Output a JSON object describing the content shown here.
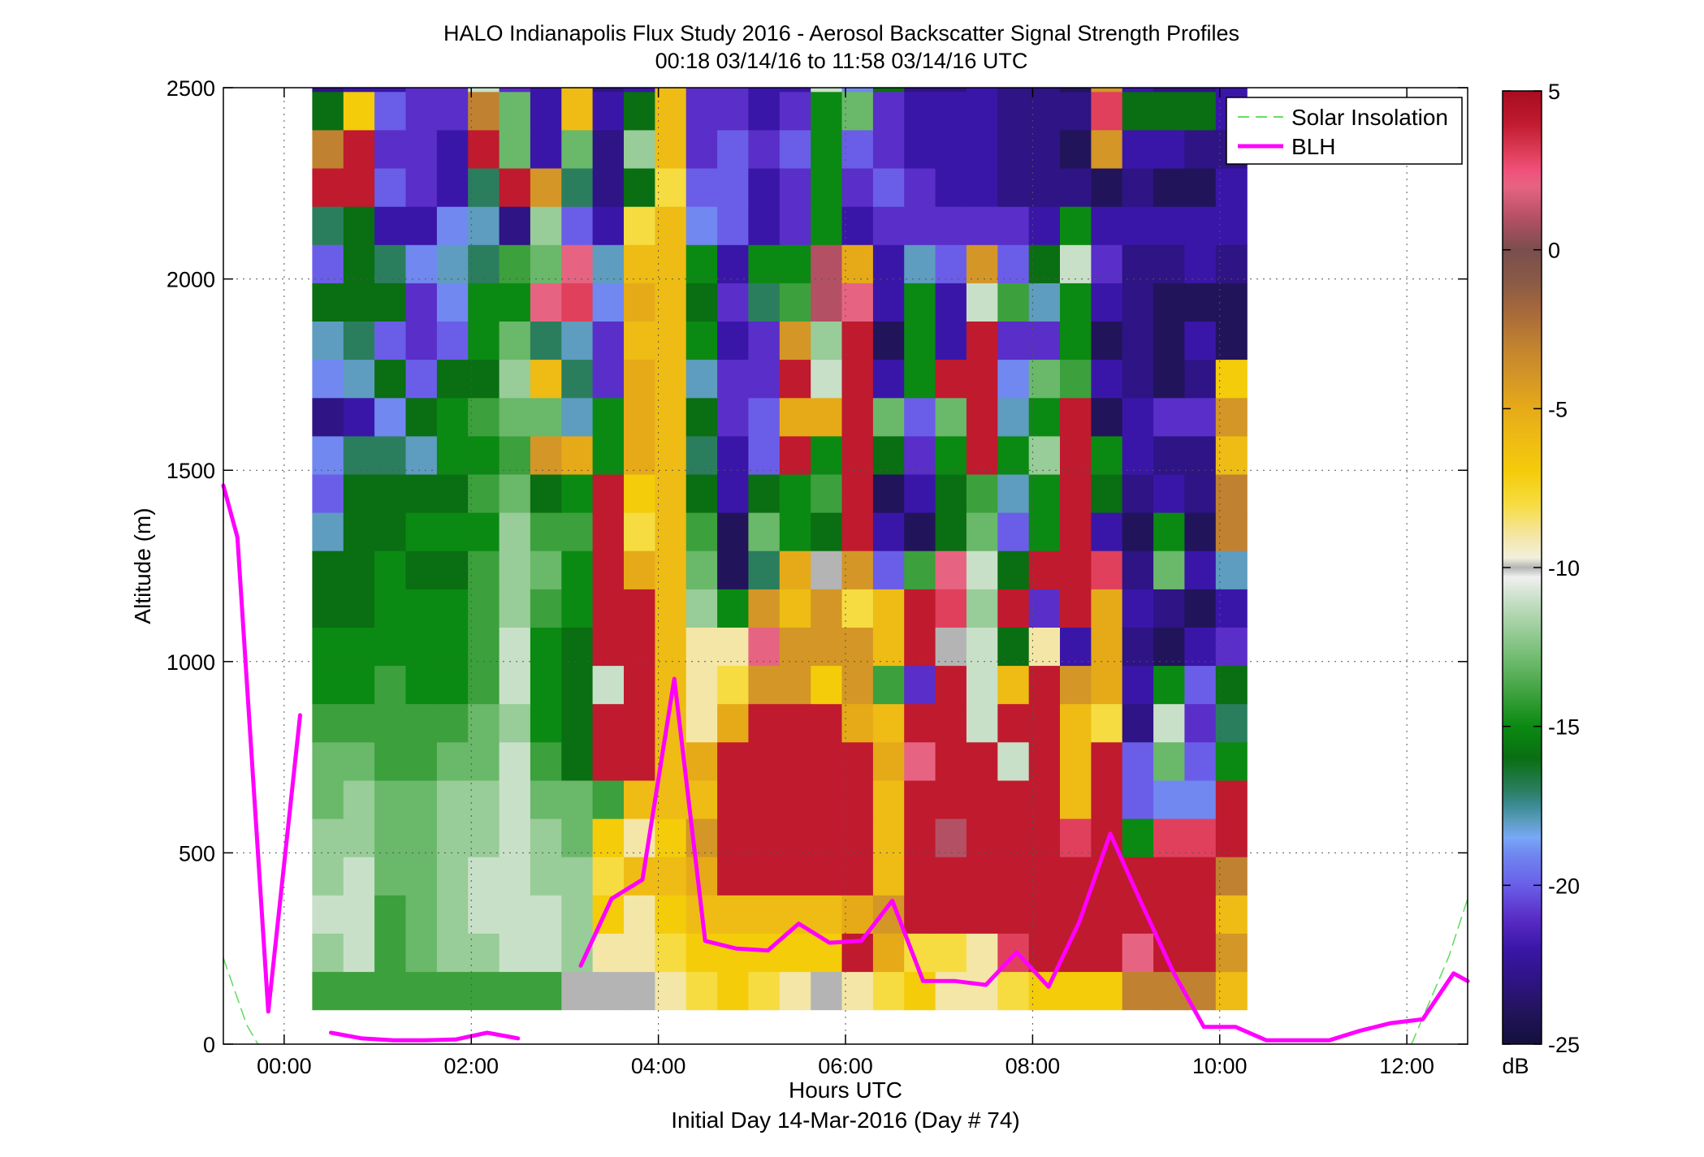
{
  "chart_data": {
    "type": "heatmap",
    "title": "HALO Indianapolis Flux Study 2016 - Aerosol Backscatter Signal Strength Profiles",
    "subtitle": "00:18 03/14/16 to 11:58 03/14/16  UTC",
    "xlabel": "Hours UTC",
    "xlabel2": "Initial Day 14-Mar-2016 (Day # 74)",
    "ylabel": "Altitude (m)",
    "xlim": [
      -0.65,
      12.65
    ],
    "ylim": [
      0,
      2500
    ],
    "x_ticks": [
      0,
      2,
      4,
      6,
      8,
      10,
      12
    ],
    "x_tick_labels": [
      "00:00",
      "02:00",
      "04:00",
      "06:00",
      "08:00",
      "10:00",
      "12:00"
    ],
    "y_ticks": [
      0,
      500,
      1000,
      1500,
      2000,
      2500
    ],
    "y_tick_labels": [
      "0",
      "500",
      "1000",
      "1500",
      "2000",
      "2500"
    ],
    "grid": true,
    "colorbar": {
      "label": "dB",
      "min": -25,
      "max": 5,
      "ticks": [
        5,
        0,
        -5,
        -10,
        -15,
        -20,
        -25
      ],
      "tick_labels": [
        "5",
        "0",
        "-5",
        "-10",
        "-15",
        "-20",
        "-25"
      ]
    },
    "colormap": [
      [
        -25,
        "#14103c"
      ],
      [
        -24,
        "#22145a"
      ],
      [
        -23,
        "#2e1484"
      ],
      [
        -22,
        "#3a16a8"
      ],
      [
        -21,
        "#5a2ec8"
      ],
      [
        -20,
        "#6a5ee8"
      ],
      [
        -19,
        "#7088f0"
      ],
      [
        -18.5,
        "#78a8f8"
      ],
      [
        -18,
        "#5e9cc0"
      ],
      [
        -17.5,
        "#3c8c96"
      ],
      [
        -17,
        "#2a7e5e"
      ],
      [
        -16,
        "#0a6e12"
      ],
      [
        -15,
        "#0a8a12"
      ],
      [
        -14,
        "#3ca03c"
      ],
      [
        -13,
        "#6ab86a"
      ],
      [
        -12,
        "#98cc98"
      ],
      [
        -11,
        "#c8e0c8"
      ],
      [
        -10.3,
        "#f0f0f0"
      ],
      [
        -10,
        "#b4b4b4"
      ],
      [
        -9.7,
        "#f2f0dc"
      ],
      [
        -9,
        "#f4e6a6"
      ],
      [
        -8,
        "#f6dc40"
      ],
      [
        -7,
        "#f4cc0a"
      ],
      [
        -6,
        "#eebc14"
      ],
      [
        -5,
        "#e6aa18"
      ],
      [
        -4,
        "#d49626"
      ],
      [
        -3,
        "#c08230"
      ],
      [
        -2,
        "#a86a3a"
      ],
      [
        -1,
        "#8a5a46"
      ],
      [
        0,
        "#7a4e4e"
      ],
      [
        1,
        "#b45064"
      ],
      [
        2,
        "#e66482"
      ],
      [
        2.5,
        "#f0507a"
      ],
      [
        3,
        "#e0405c"
      ],
      [
        4,
        "#c01a2e"
      ],
      [
        5,
        "#a80c20"
      ]
    ],
    "heatmap": {
      "x_start": 0.3,
      "x_step": 0.333,
      "columns": 30,
      "y_start": 90,
      "y_step": 100,
      "rows": 25,
      "note_values": "z in dB, rows bottom to top",
      "z": [
        [
          -14,
          -14,
          -14,
          -14,
          -14,
          -14,
          -14,
          -14,
          -10,
          -10,
          -10,
          -9,
          -8,
          -7,
          -8,
          -9,
          -10,
          -9,
          -8,
          -7,
          -9,
          -9,
          -8,
          -7,
          -7,
          -7,
          -3,
          -3,
          -3,
          -6
        ],
        [
          -12,
          -11,
          -14,
          -13,
          -12,
          -12,
          -11,
          -11,
          -12,
          -9,
          -9,
          -8,
          -7,
          -7,
          -7,
          -7,
          -7,
          4,
          -5,
          -8,
          -8,
          -9,
          3,
          4,
          4,
          4,
          2,
          4,
          4,
          -4
        ],
        [
          -11,
          -11,
          -14,
          -13,
          -12,
          -11,
          -11,
          -11,
          -12,
          -7,
          -9,
          -7,
          -6,
          -6,
          -6,
          -6,
          -6,
          -5,
          -4,
          4,
          4,
          4,
          4,
          4,
          4,
          4,
          4,
          4,
          4,
          -6
        ],
        [
          -12,
          -11,
          -13,
          -13,
          -12,
          -11,
          -11,
          -12,
          -12,
          -8,
          -6,
          -6,
          -5,
          4,
          4,
          4,
          4,
          4,
          -6,
          4,
          4,
          4,
          4,
          4,
          4,
          4,
          4,
          4,
          4,
          -3
        ],
        [
          -12,
          -12,
          -13,
          -13,
          -12,
          -12,
          -11,
          -12,
          -13,
          -7,
          -9,
          -7,
          -4,
          4,
          4,
          4,
          4,
          4,
          -6,
          4,
          1,
          4,
          4,
          4,
          3,
          4,
          -15,
          3,
          3,
          4
        ],
        [
          -13,
          -12,
          -13,
          -13,
          -12,
          -12,
          -11,
          -13,
          -13,
          -14,
          -6,
          -6,
          -6,
          4,
          4,
          4,
          4,
          4,
          -6,
          4,
          4,
          4,
          4,
          4,
          -6,
          4,
          -20,
          -19,
          -19,
          4
        ],
        [
          -13,
          -13,
          -14,
          -14,
          -13,
          -13,
          -11,
          -14,
          -16,
          4,
          4,
          -6,
          -5,
          4,
          4,
          4,
          4,
          4,
          -5,
          2,
          4,
          4,
          -11,
          4,
          -6,
          4,
          -20,
          -13,
          -20,
          -15
        ],
        [
          -14,
          -14,
          -14,
          -14,
          -14,
          -13,
          -12,
          -15,
          -16,
          4,
          4,
          -6,
          -9,
          -5,
          4,
          4,
          4,
          -5,
          -6,
          4,
          4,
          -11,
          4,
          4,
          -6,
          -8,
          -23,
          -11,
          -21,
          -17
        ],
        [
          -15,
          -15,
          -14,
          -15,
          -15,
          -14,
          -11,
          -15,
          -16,
          -11,
          4,
          -6,
          -9,
          -8,
          -4,
          -4,
          -7,
          -4,
          -14,
          -21,
          4,
          -11,
          -6,
          4,
          -4,
          -5,
          -22,
          -15,
          -20,
          -16
        ],
        [
          -15,
          -15,
          -15,
          -15,
          -15,
          -14,
          -11,
          -15,
          -16,
          4,
          4,
          -6,
          -9,
          -9,
          2,
          -4,
          -4,
          -4,
          -6,
          4,
          -10,
          -11,
          -16,
          -9,
          -22,
          -5,
          -23,
          -24,
          -22,
          -21
        ],
        [
          -16,
          -16,
          -15,
          -15,
          -15,
          -14,
          -12,
          -14,
          -15,
          4,
          4,
          -6,
          -12,
          -15,
          -4,
          -6,
          -4,
          -8,
          -6,
          4,
          3,
          -12,
          4,
          -21,
          4,
          -5,
          -22,
          -23,
          -24,
          -22
        ],
        [
          -16,
          -16,
          -15,
          -16,
          -16,
          -14,
          -12,
          -13,
          -15,
          4,
          -5,
          -6,
          -13,
          -24,
          -17,
          -5,
          -10,
          -4,
          -20,
          -14,
          2,
          -11,
          -16,
          4,
          4,
          3,
          -23,
          -13,
          -22,
          -18
        ],
        [
          -18,
          -16,
          -16,
          -15,
          -15,
          -15,
          -12,
          -14,
          -14,
          4,
          -8,
          -6,
          -14,
          -24,
          -13,
          -15,
          -16,
          4,
          -22,
          -24,
          -16,
          -13,
          -20,
          -15,
          4,
          -22,
          -24,
          -15,
          -24,
          -3
        ],
        [
          -20,
          -16,
          -16,
          -16,
          -16,
          -14,
          -13,
          -16,
          -15,
          4,
          -7,
          -6,
          -16,
          -22,
          -16,
          -15,
          -14,
          4,
          -24,
          -22,
          -16,
          -14,
          -18,
          -15,
          4,
          -16,
          -23,
          -22,
          -23,
          -3
        ],
        [
          -19,
          -17,
          -17,
          -18,
          -15,
          -15,
          -14,
          -4,
          -5,
          -15,
          -5,
          -6,
          -17,
          -22,
          -20,
          4,
          -15,
          4,
          -16,
          -21,
          -15,
          4,
          -15,
          -12,
          4,
          -15,
          -22,
          -23,
          -23,
          -6
        ],
        [
          -23,
          -22,
          -19,
          -16,
          -15,
          -14,
          -13,
          -13,
          -18,
          -15,
          -5,
          -6,
          -16,
          -21,
          -20,
          -5,
          -5,
          4,
          -13,
          -20,
          -13,
          4,
          -18,
          -15,
          4,
          -24,
          -22,
          -21,
          -21,
          -4
        ],
        [
          -19,
          -18,
          -16,
          -20,
          -16,
          -16,
          -12,
          -6,
          -17,
          -21,
          -5,
          -6,
          -18,
          -21,
          -21,
          4,
          -11,
          4,
          -22,
          -15,
          4,
          4,
          -19,
          -13,
          -14,
          -22,
          -23,
          -24,
          -23,
          -7
        ],
        [
          -18,
          -17,
          -20,
          -21,
          -20,
          -15,
          -13,
          -17,
          -18,
          -21,
          -6,
          -6,
          -15,
          -22,
          -21,
          -4,
          -12,
          4,
          -24,
          -15,
          -22,
          4,
          -21,
          -21,
          -15,
          -24,
          -23,
          -24,
          -22,
          -24
        ],
        [
          -16,
          -16,
          -16,
          -21,
          -19,
          -15,
          -15,
          2,
          3,
          -19,
          -5,
          -6,
          -16,
          -21,
          -17,
          -14,
          1,
          2,
          -22,
          -15,
          -22,
          -11,
          -14,
          -18,
          -15,
          -22,
          -23,
          -24,
          -24,
          -24
        ],
        [
          -20,
          -16,
          -17,
          -19,
          -18,
          -17,
          -14,
          -13,
          2,
          -18,
          -6,
          -6,
          -15,
          -22,
          -15,
          -15,
          1,
          -5,
          -22,
          -18,
          -20,
          -4,
          -20,
          -16,
          -11,
          -21,
          -23,
          -23,
          -22,
          -23
        ]
      ]
    },
    "heatmap_upper_rows": {
      "note": "rows 2090 m to 2490 m",
      "z": [
        [
          -17,
          -16,
          -22,
          -22,
          -19,
          -18,
          -23,
          -12,
          -20,
          -22,
          -8,
          -6,
          -19,
          -20,
          -22,
          -21,
          -15,
          -22,
          -21,
          -21,
          -21,
          -21,
          -21,
          -22,
          -15,
          -22,
          -22,
          -22,
          -22,
          -22
        ],
        [
          4,
          4,
          -20,
          -21,
          -22,
          -17,
          4,
          -4,
          -17,
          -23,
          -16,
          -8,
          -20,
          -20,
          -22,
          -21,
          -15,
          -21,
          -20,
          -21,
          -22,
          -22,
          -23,
          -23,
          -23,
          -24,
          -23,
          -24,
          -24,
          -22
        ],
        [
          -3,
          4,
          -21,
          -21,
          -22,
          4,
          -13,
          -22,
          -13,
          -23,
          -12,
          -6,
          -21,
          -20,
          -21,
          -20,
          -15,
          -20,
          -21,
          -22,
          -22,
          -22,
          -23,
          -23,
          -24,
          -4,
          -22,
          -22,
          -23,
          -23
        ],
        [
          -16,
          -7,
          -20,
          -21,
          -21,
          -3,
          -13,
          -22,
          -6,
          -22,
          -16,
          -6,
          -21,
          -21,
          -22,
          -21,
          -15,
          -13,
          -21,
          -22,
          -22,
          -22,
          -23,
          -23,
          -23,
          3,
          -16,
          -16,
          -16,
          -22
        ],
        [
          -23,
          -22,
          -22,
          -21,
          -21,
          -11,
          -21,
          -22,
          -6,
          -23,
          -22,
          -6,
          -21,
          -21,
          -22,
          -22,
          -11,
          -19,
          -16,
          -23,
          -23,
          -22,
          -23,
          -23,
          -24,
          -4,
          -22,
          -23,
          -23,
          -22
        ]
      ]
    },
    "series": [
      {
        "name": "Solar Insolation",
        "style": "dashed",
        "color": "#66dd66",
        "segments": [
          [
            [
              -0.65,
              225
            ],
            [
              -0.4,
              50
            ],
            [
              -0.28,
              0
            ]
          ],
          [
            [
              12.05,
              0
            ],
            [
              12.45,
              230
            ],
            [
              12.65,
              380
            ]
          ]
        ]
      },
      {
        "name": "BLH",
        "style": "solid",
        "color": "#ff00ff",
        "segments": [
          [
            [
              -0.65,
              1460
            ],
            [
              -0.5,
              1325
            ],
            [
              -0.17,
              85
            ],
            [
              0.17,
              860
            ]
          ],
          [
            [
              0.5,
              30
            ],
            [
              0.83,
              15
            ],
            [
              1.17,
              10
            ],
            [
              1.5,
              10
            ],
            [
              1.83,
              12
            ],
            [
              2.17,
              30
            ],
            [
              2.5,
              15
            ]
          ],
          [
            [
              3.17,
              205
            ],
            [
              3.5,
              380
            ],
            [
              3.83,
              430
            ],
            [
              4.17,
              955
            ],
            [
              4.5,
              270
            ],
            [
              4.83,
              250
            ],
            [
              5.17,
              245
            ],
            [
              5.5,
              315
            ],
            [
              5.83,
              265
            ],
            [
              6.17,
              270
            ],
            [
              6.5,
              375
            ],
            [
              6.83,
              165
            ],
            [
              7.17,
              165
            ],
            [
              7.5,
              155
            ],
            [
              7.83,
              240
            ],
            [
              8.17,
              150
            ],
            [
              8.5,
              320
            ],
            [
              8.83,
              550
            ],
            [
              9.17,
              365
            ],
            [
              9.5,
              190
            ],
            [
              9.83,
              45
            ],
            [
              10.17,
              45
            ],
            [
              10.5,
              10
            ],
            [
              10.83,
              10
            ],
            [
              11.17,
              10
            ],
            [
              11.5,
              35
            ],
            [
              11.83,
              55
            ],
            [
              12.17,
              65
            ],
            [
              12.5,
              185
            ],
            [
              12.65,
              165
            ]
          ]
        ]
      }
    ],
    "legend": {
      "placement": "top-right",
      "entries": [
        "Solar Insolation",
        "BLH"
      ]
    }
  }
}
